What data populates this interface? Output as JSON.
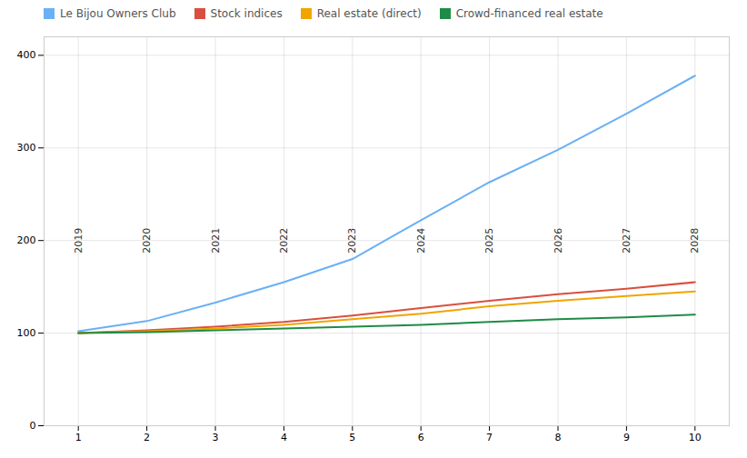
{
  "chart_data": {
    "type": "line",
    "x": [
      1,
      2,
      3,
      4,
      5,
      6,
      7,
      8,
      9,
      10
    ],
    "series": [
      {
        "name": "Le Bijou Owners Club",
        "color": "#6ab0f5",
        "values": [
          102,
          113,
          133,
          155,
          180,
          222,
          263,
          298,
          337,
          378
        ]
      },
      {
        "name": "Stock indices",
        "color": "#d94f3d",
        "values": [
          100,
          103,
          107,
          112,
          119,
          127,
          135,
          142,
          148,
          155
        ]
      },
      {
        "name": "Real estate (direct)",
        "color": "#f0a500",
        "values": [
          100,
          102,
          105,
          109,
          115,
          121,
          129,
          135,
          140,
          145
        ]
      },
      {
        "name": "Crowd-financed real estate",
        "color": "#1e8c45",
        "values": [
          100,
          101,
          103,
          105,
          107,
          109,
          112,
          115,
          117,
          120
        ]
      }
    ],
    "annotations": [
      {
        "x": 1,
        "y": 200,
        "text": "2019"
      },
      {
        "x": 2,
        "y": 200,
        "text": "2020"
      },
      {
        "x": 3,
        "y": 200,
        "text": "2021"
      },
      {
        "x": 4,
        "y": 200,
        "text": "2022"
      },
      {
        "x": 5,
        "y": 200,
        "text": "2023"
      },
      {
        "x": 6,
        "y": 200,
        "text": "2024"
      },
      {
        "x": 7,
        "y": 200,
        "text": "2025"
      },
      {
        "x": 8,
        "y": 200,
        "text": "2026"
      },
      {
        "x": 9,
        "y": 200,
        "text": "2027"
      },
      {
        "x": 10,
        "y": 200,
        "text": "2028"
      }
    ],
    "xlim": [
      0.5,
      10.5
    ],
    "ylim": [
      0,
      420
    ],
    "xticks": [
      1,
      2,
      3,
      4,
      5,
      6,
      7,
      8,
      9,
      10
    ],
    "yticks": [
      0,
      100,
      200,
      300,
      400
    ],
    "grid": true,
    "legend": "top"
  }
}
